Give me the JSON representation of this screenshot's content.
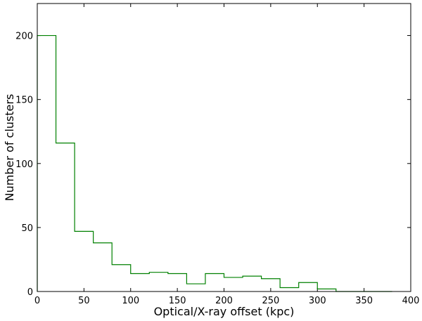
{
  "chart_data": {
    "type": "histogram",
    "xlabel": "Optical/X-ray offset (kpc)",
    "ylabel": "Number of clusters",
    "xlim": [
      0,
      400
    ],
    "ylim": [
      0,
      225
    ],
    "x_ticks": [
      0,
      50,
      100,
      150,
      200,
      250,
      300,
      350,
      400
    ],
    "y_ticks": [
      0,
      50,
      100,
      150,
      200
    ],
    "grid": false,
    "bin_width": 20,
    "bins": [
      {
        "x0": 0,
        "x1": 20,
        "count": 200
      },
      {
        "x0": 20,
        "x1": 40,
        "count": 116
      },
      {
        "x0": 40,
        "x1": 60,
        "count": 47
      },
      {
        "x0": 60,
        "x1": 80,
        "count": 38
      },
      {
        "x0": 80,
        "x1": 100,
        "count": 21
      },
      {
        "x0": 100,
        "x1": 120,
        "count": 14
      },
      {
        "x0": 120,
        "x1": 140,
        "count": 15
      },
      {
        "x0": 140,
        "x1": 160,
        "count": 14
      },
      {
        "x0": 160,
        "x1": 180,
        "count": 6
      },
      {
        "x0": 180,
        "x1": 200,
        "count": 14
      },
      {
        "x0": 200,
        "x1": 220,
        "count": 11
      },
      {
        "x0": 220,
        "x1": 240,
        "count": 12
      },
      {
        "x0": 240,
        "x1": 260,
        "count": 10
      },
      {
        "x0": 260,
        "x1": 280,
        "count": 3
      },
      {
        "x0": 280,
        "x1": 300,
        "count": 7
      },
      {
        "x0": 300,
        "x1": 320,
        "count": 2
      },
      {
        "x0": 320,
        "x1": 340,
        "count": 0
      },
      {
        "x0": 340,
        "x1": 360,
        "count": 0
      },
      {
        "x0": 360,
        "x1": 380,
        "count": 0
      }
    ],
    "colors": {
      "series": "#008000",
      "axis": "#000000"
    }
  }
}
